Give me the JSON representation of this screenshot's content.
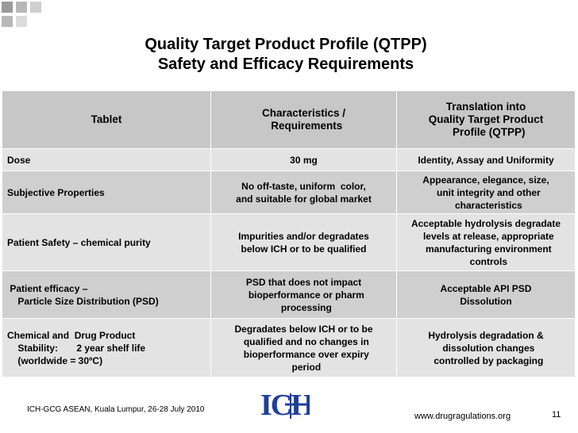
{
  "slide": {
    "title_line1": "Quality Target Product Profile (QTPP)",
    "title_line2": "Safety and Efficacy Requirements"
  },
  "table": {
    "headers": [
      "Tablet",
      "Characteristics /\n  Requirements",
      "Translation into\nQuality Target Product\n  Profile (QTPP)"
    ],
    "rows": [
      {
        "c1": "Dose",
        "c2": "30 mg",
        "c3": "Identity, Assay and Uniformity"
      },
      {
        "c1": "Subjective Properties",
        "c2": "No off-taste, uniform  color,\nand suitable for global market",
        "c3": "Appearance, elegance, size,\n  unit integrity and other\n  characteristics"
      },
      {
        "c1": "Patient Safety – chemical purity",
        "c2": "Impurities and/or degradates\nbelow ICH or to be qualified",
        "c3": "Acceptable hydrolysis degradate\n  levels at release, appropriate\n  manufacturing environment\n  controls"
      },
      {
        "c1": " Patient efficacy –\n    Particle Size Distribution (PSD)",
        "c2": "PSD that does not impact\n  bioperformance or pharm\n  processing",
        "c3": "Acceptable API PSD\nDissolution"
      },
      {
        "c1": "Chemical and  Drug Product\n    Stability:       2 year shelf life\n    (worldwide = 30ºC)",
        "c2": "Degradates below ICH or to be\n  qualified and no changes in\n  bioperformance over expiry\n  period",
        "c3": "Hydrolysis degradation &\n  dissolution changes\n  controlled by packaging"
      }
    ]
  },
  "footer": {
    "event": "ICH-GCG ASEAN, Kuala Lumpur, 26-28 July 2010",
    "logo_text": "ICH",
    "website": "www.drugragulations.org",
    "page_number": "11"
  },
  "colors": {
    "header_bg": "#c7c7c7",
    "row_light": "#e3e3e3",
    "row_dark": "#cfcfcf",
    "logo_blue": "#1f3f99"
  }
}
